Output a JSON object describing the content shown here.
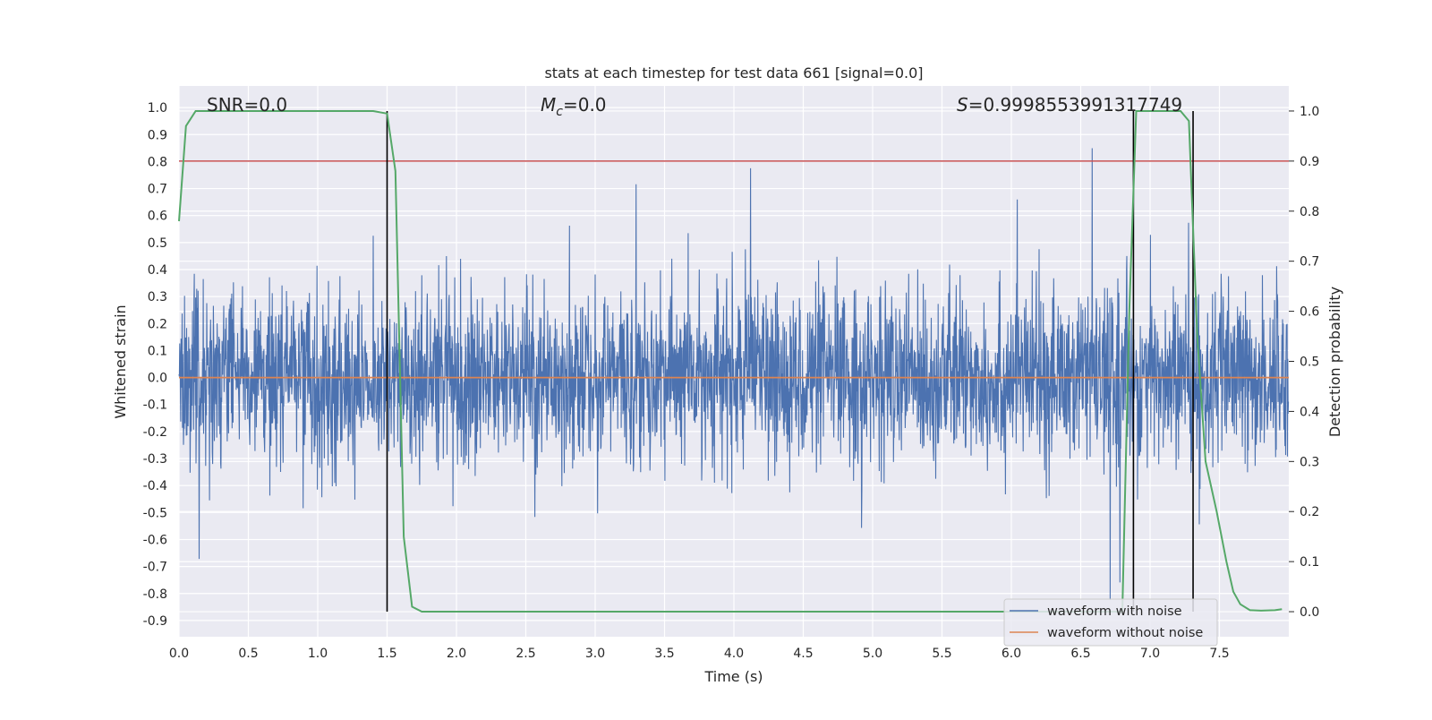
{
  "chart_data": {
    "type": "line",
    "title": "stats at each timestep for test data 661 [signal=0.0]",
    "xlabel": "Time (s)",
    "ylabel": "Whitened strain",
    "y2label": "Detection probability",
    "xlim": [
      0.0,
      8.0
    ],
    "ylim": [
      -0.96,
      1.08
    ],
    "y2lim": [
      -0.05,
      1.05
    ],
    "xticks": [
      "0.0",
      "0.5",
      "1.0",
      "1.5",
      "2.0",
      "2.5",
      "3.0",
      "3.5",
      "4.0",
      "4.5",
      "5.0",
      "5.5",
      "6.0",
      "6.5",
      "7.0",
      "7.5"
    ],
    "yticks": [
      "1.0",
      "0.9",
      "0.8",
      "0.7",
      "0.6",
      "0.5",
      "0.4",
      "0.3",
      "0.2",
      "0.1",
      "0.0",
      "-0.1",
      "-0.2",
      "-0.3",
      "-0.4",
      "-0.5",
      "-0.6",
      "-0.7",
      "-0.8",
      "-0.9"
    ],
    "y2ticks": [
      "1.0",
      "0.9",
      "0.8",
      "0.7",
      "0.6",
      "0.5",
      "0.4",
      "0.3",
      "0.2",
      "0.1",
      "0.0"
    ],
    "grid": true,
    "legend_placement": "bottom-right",
    "annotations": {
      "snr_label": "SNR=0.0",
      "mc_symbol": "M",
      "mc_subscript": "c",
      "mc_value": "=0.0",
      "s_symbol": "S",
      "s_value": "=0.9998553991317749"
    },
    "threshold_level": 0.9,
    "event_markers_x": [
      1.5,
      6.88,
      7.31
    ],
    "series": [
      {
        "name": "waveform with noise",
        "color": "#4c72b0",
        "description_amplitude": [
          -0.9,
          0.94
        ]
      },
      {
        "name": "waveform without noise",
        "color": "#dd8452",
        "x": [
          0.0,
          8.0
        ],
        "y": [
          0.0,
          0.0
        ]
      },
      {
        "color": "#55a868",
        "axis": "right",
        "x": [
          0.0,
          0.05,
          0.12,
          0.2,
          0.5,
          1.0,
          1.4,
          1.5,
          1.56,
          1.62,
          1.68,
          1.75,
          2.0,
          3.0,
          4.0,
          5.0,
          6.0,
          6.6,
          6.8,
          6.85,
          6.9,
          6.95,
          7.1,
          7.22,
          7.28,
          7.34,
          7.4,
          7.48,
          7.55,
          7.6,
          7.65,
          7.72,
          7.8,
          7.9,
          7.95
        ],
        "y": [
          0.78,
          0.97,
          1.0,
          1.0,
          1.0,
          1.0,
          1.0,
          0.995,
          0.88,
          0.15,
          0.01,
          0.0,
          0.0,
          0.0,
          0.0,
          0.0,
          0.0,
          0.0,
          0.0,
          0.6,
          1.0,
          1.0,
          1.0,
          1.0,
          0.98,
          0.55,
          0.3,
          0.2,
          0.1,
          0.04,
          0.015,
          0.003,
          0.002,
          0.003,
          0.005
        ]
      }
    ]
  }
}
